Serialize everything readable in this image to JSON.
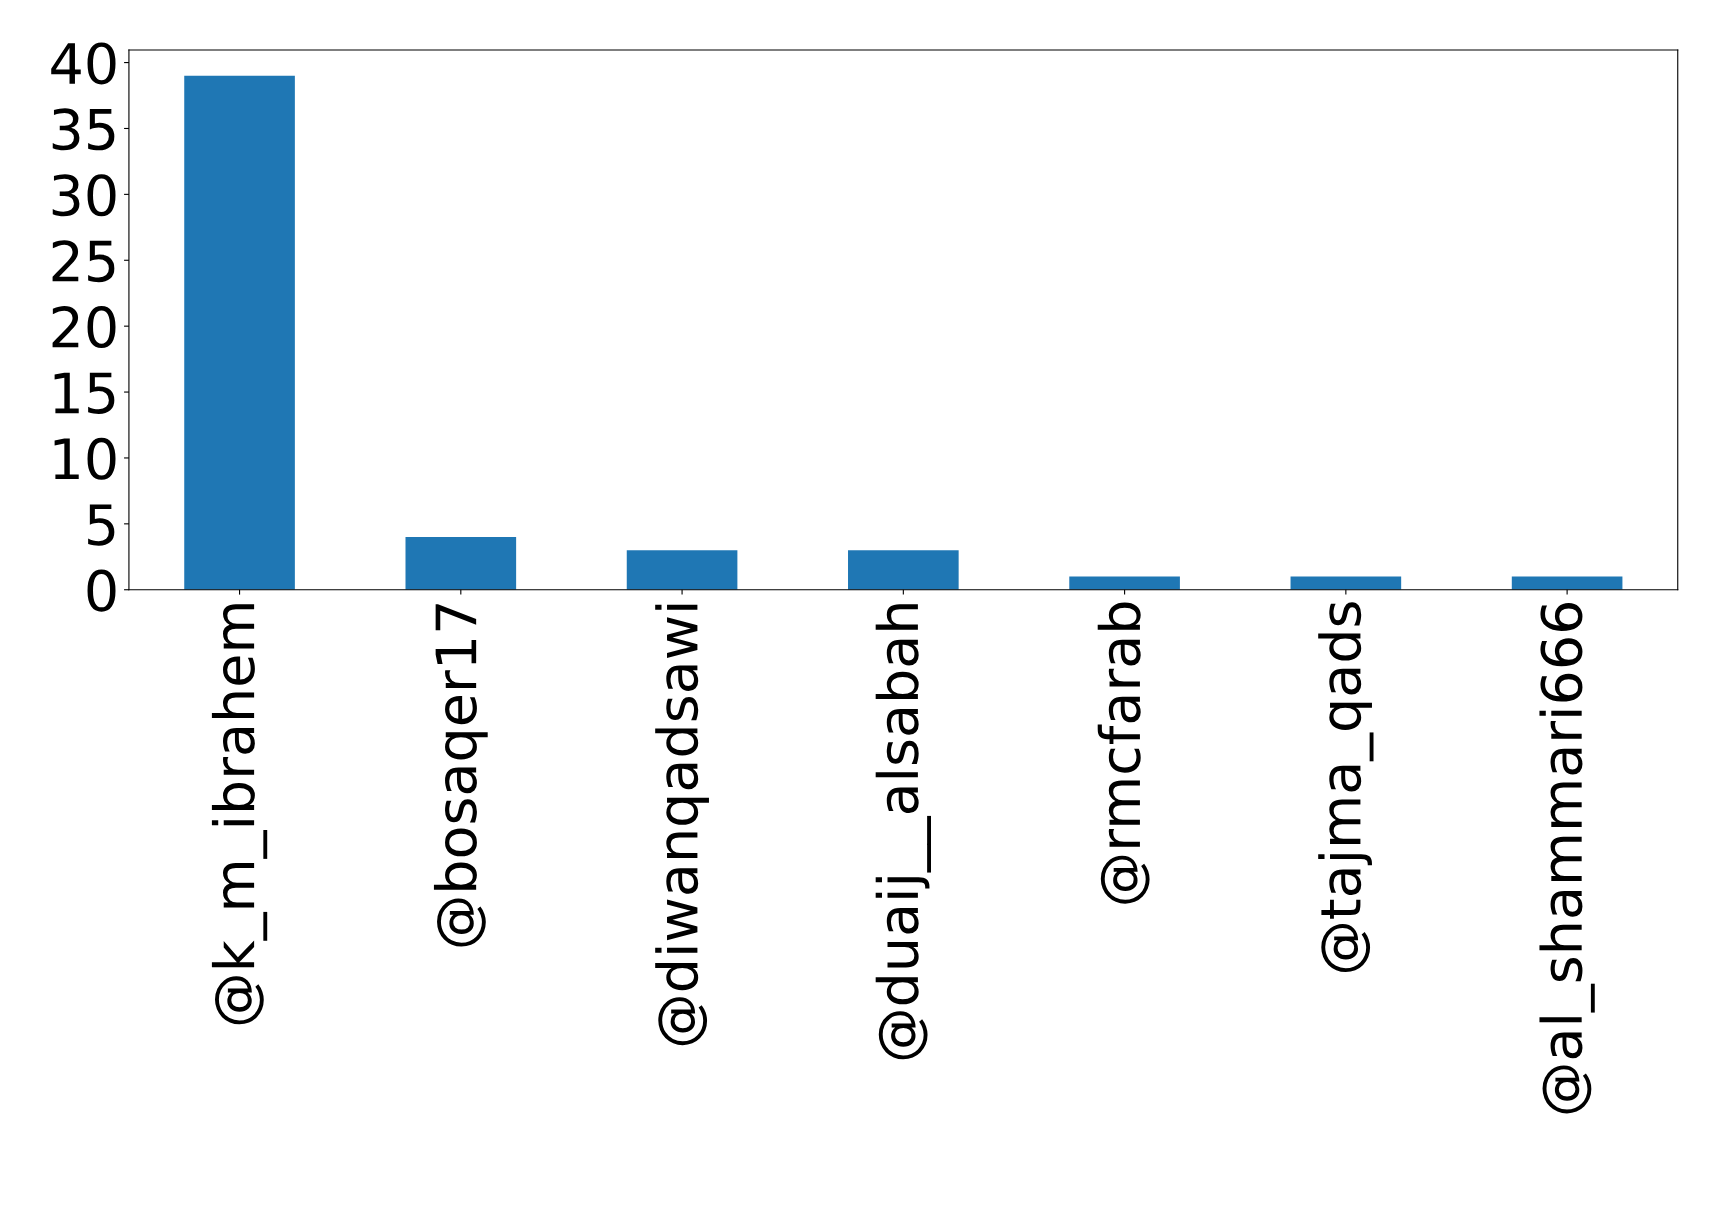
{
  "chart_data": {
    "type": "bar",
    "categories": [
      "@k_m_ibrahem",
      "@bosaqer17",
      "@diwanqadsawi",
      "@duaij__alsabah",
      "@rmcfarab",
      "@tajma_qads",
      "@al_shammari666"
    ],
    "values": [
      39,
      4,
      3,
      3,
      1,
      1,
      1
    ],
    "color": "#1f77b4",
    "ylim": [
      0,
      40.95
    ],
    "yticks": [
      0,
      5,
      10,
      15,
      20,
      25,
      30,
      35,
      40
    ],
    "grid": false,
    "legend": false
  }
}
